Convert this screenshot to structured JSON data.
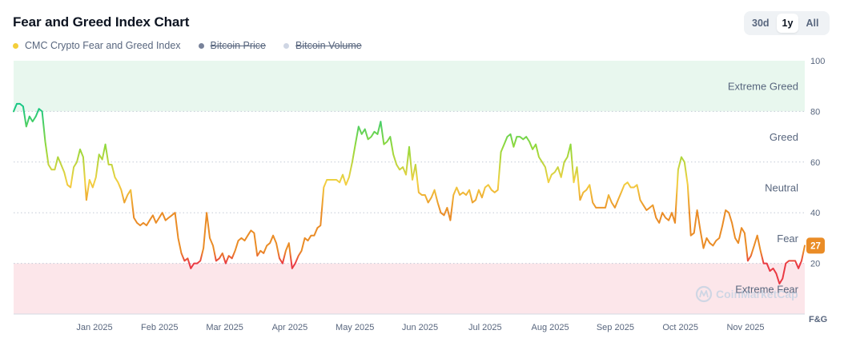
{
  "title": "Fear and Greed Index Chart",
  "range_buttons": [
    "30d",
    "1y",
    "All"
  ],
  "active_range": "1y",
  "legend": [
    {
      "label": "CMC Crypto Fear and Greed Index",
      "color": "#f3ce3a",
      "off": false
    },
    {
      "label": "Bitcoin Price",
      "color": "#78829a",
      "off": true
    },
    {
      "label": "Bitcoin Volume",
      "color": "#cfd6e4",
      "off": true
    }
  ],
  "watermark": "CoinMarketCap",
  "chart_data": {
    "type": "line",
    "ylim": [
      0,
      100
    ],
    "y_ticks": [
      100,
      80,
      60,
      40,
      20
    ],
    "y_axis_label": "F&G",
    "x_tick_labels": [
      "Jan 2025",
      "Feb 2025",
      "Mar 2025",
      "Apr 2025",
      "May 2025",
      "Jun 2025",
      "Jul 2025",
      "Aug 2025",
      "Sep 2025",
      "Oct 2025",
      "Nov 2025"
    ],
    "zones": [
      {
        "label": "Extreme Greed",
        "from": 80,
        "to": 100,
        "color": "#e8f7ee"
      },
      {
        "label": "Greed",
        "from": 60,
        "to": 80
      },
      {
        "label": "Neutral",
        "from": 40,
        "to": 60
      },
      {
        "label": "Fear",
        "from": 20,
        "to": 40
      },
      {
        "label": "Extreme Fear",
        "from": 0,
        "to": 20,
        "color": "#fce6ea"
      }
    ],
    "current_value": 27,
    "current_value_color": "#ea8c26",
    "series": [
      {
        "color_stops": [
          {
            "value": 0,
            "color": "#ea3943"
          },
          {
            "value": 20,
            "color": "#ea3943"
          },
          {
            "value": 25,
            "color": "#ea8c26"
          },
          {
            "value": 40,
            "color": "#ea8c26"
          },
          {
            "value": 52,
            "color": "#f3d042"
          },
          {
            "value": 66,
            "color": "#93d93b"
          },
          {
            "value": 82,
            "color": "#16c784"
          },
          {
            "value": 100,
            "color": "#16c784"
          }
        ],
        "values": [
          80,
          83,
          83,
          82,
          74,
          78,
          76,
          78,
          81,
          80,
          68,
          59,
          57,
          57,
          62,
          59,
          56,
          51,
          50,
          58,
          60,
          65,
          62,
          45,
          53,
          50,
          54,
          63,
          61,
          67,
          59,
          59,
          54,
          52,
          49,
          44,
          47,
          49,
          38,
          36,
          35,
          36,
          35,
          37,
          39,
          36,
          38,
          40,
          37,
          38,
          39,
          40,
          30,
          24,
          21,
          22,
          18,
          20,
          20,
          21,
          26,
          40,
          30,
          27,
          21,
          22,
          24,
          20,
          23,
          22,
          25,
          29,
          30,
          29,
          31,
          33,
          32,
          23,
          25,
          24,
          27,
          28,
          31,
          28,
          22,
          20,
          25,
          28,
          18,
          20,
          23,
          25,
          30,
          29,
          31,
          31,
          34,
          35,
          50,
          53,
          53,
          53,
          53,
          52,
          55,
          51,
          54,
          60,
          67,
          74,
          71,
          73,
          69,
          70,
          72,
          71,
          76,
          67,
          68,
          70,
          63,
          59,
          57,
          58,
          55,
          66,
          53,
          59,
          48,
          47,
          47,
          44,
          46,
          49,
          44,
          40,
          39,
          42,
          37,
          47,
          50,
          47,
          48,
          47,
          49,
          44,
          45,
          49,
          46,
          50,
          51,
          49,
          48,
          49,
          64,
          67,
          70,
          71,
          66,
          70,
          70,
          69,
          70,
          68,
          65,
          67,
          62,
          60,
          58,
          52,
          55,
          56,
          58,
          54,
          60,
          62,
          67,
          52,
          58,
          45,
          48,
          49,
          51,
          44,
          42,
          42,
          42,
          42,
          47,
          44,
          42,
          45,
          48,
          51,
          52,
          50,
          50,
          51,
          45,
          43,
          41,
          42,
          43,
          38,
          36,
          40,
          38,
          37,
          40,
          36,
          57,
          62,
          60,
          51,
          31,
          32,
          41,
          33,
          26,
          30,
          28,
          27,
          29,
          30,
          35,
          41,
          40,
          36,
          30,
          28,
          34,
          32,
          21,
          23,
          27,
          31,
          25,
          20,
          20,
          17,
          18,
          16,
          12,
          14,
          20,
          21,
          21,
          21,
          18,
          21,
          27
        ]
      }
    ]
  }
}
